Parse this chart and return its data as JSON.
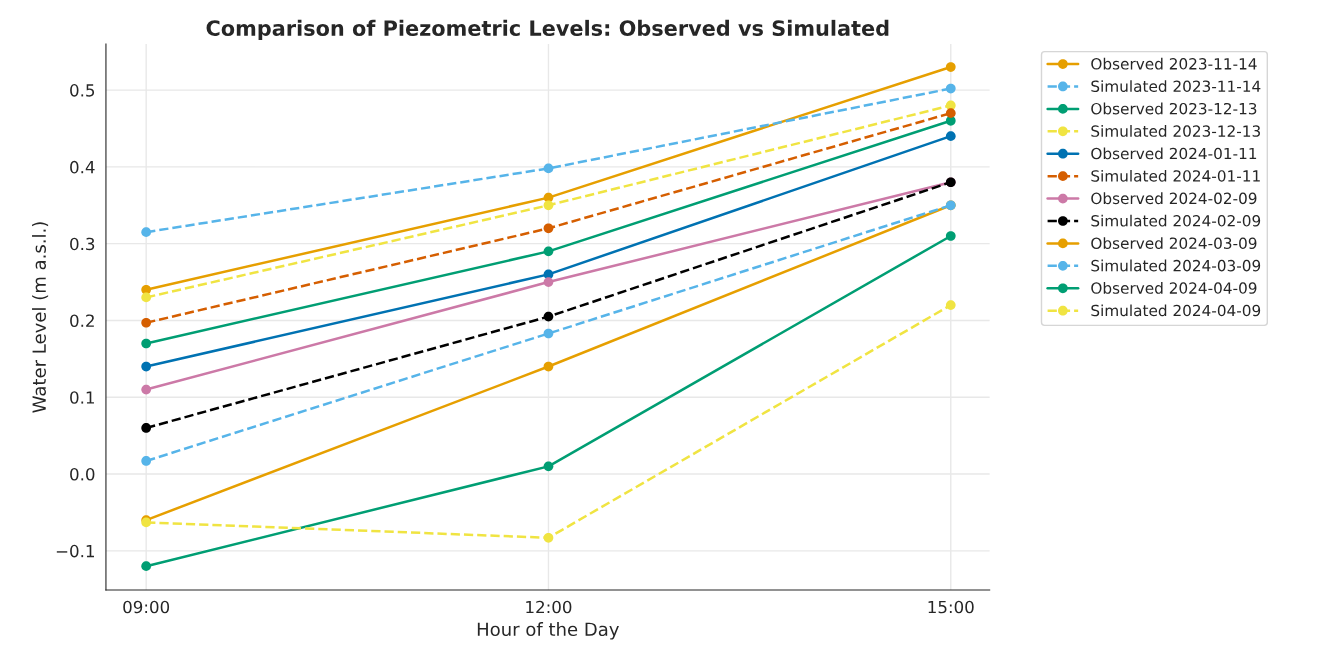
{
  "chart_data": {
    "type": "line",
    "title": "Comparison of Piezometric Levels: Observed vs Simulated",
    "xlabel": "Hour of the Day",
    "ylabel": "Water Level (m a.s.l.)",
    "x": [
      9,
      12,
      15
    ],
    "xlim": [
      8.7,
      15.29
    ],
    "xticks": [
      {
        "value": 9,
        "label": "09:00"
      },
      {
        "value": 12,
        "label": "12:00"
      },
      {
        "value": 15,
        "label": "15:00"
      }
    ],
    "ylim": [
      -0.151,
      0.56
    ],
    "yticks": [
      {
        "value": -0.1,
        "label": "−0.1"
      },
      {
        "value": 0,
        "label": "0.0"
      },
      0.1,
      0.2,
      0.3,
      0.4,
      0.5
    ],
    "grid": true,
    "legend": "top right",
    "marker": "circle",
    "series": [
      {
        "name": "Observed 2023-11-14",
        "color": "#e69f00",
        "line_style": "solid",
        "values": [
          0.24,
          0.36,
          0.53
        ]
      },
      {
        "name": "Simulated 2023-11-14",
        "color": "#56b4e9",
        "line_style": "dashed",
        "values": [
          0.315,
          0.398,
          0.502
        ]
      },
      {
        "name": "Observed 2023-12-13",
        "color": "#009e73",
        "line_style": "solid",
        "values": [
          0.17,
          0.29,
          0.46
        ]
      },
      {
        "name": "Simulated 2023-12-13",
        "color": "#f0e442",
        "line_style": "dashed",
        "values": [
          0.23,
          0.35,
          0.48
        ]
      },
      {
        "name": "Observed 2024-01-11",
        "color": "#0072b2",
        "line_style": "solid",
        "values": [
          0.14,
          0.26,
          0.44
        ]
      },
      {
        "name": "Simulated 2024-01-11",
        "color": "#d55e00",
        "line_style": "dashed",
        "values": [
          0.197,
          0.32,
          0.47
        ]
      },
      {
        "name": "Observed 2024-02-09",
        "color": "#cc79a7",
        "line_style": "solid",
        "values": [
          0.11,
          0.25,
          0.38
        ]
      },
      {
        "name": "Simulated 2024-02-09",
        "color": "#000000",
        "line_style": "dashed",
        "values": [
          0.06,
          0.205,
          0.38
        ]
      },
      {
        "name": "Observed 2024-03-09",
        "color": "#e69f00",
        "line_style": "solid",
        "values": [
          -0.06,
          0.14,
          0.35
        ]
      },
      {
        "name": "Simulated 2024-03-09",
        "color": "#56b4e9",
        "line_style": "dashed",
        "values": [
          0.017,
          0.183,
          0.35
        ]
      },
      {
        "name": "Observed 2024-04-09",
        "color": "#009e73",
        "line_style": "solid",
        "values": [
          -0.12,
          0.01,
          0.31
        ]
      },
      {
        "name": "Simulated 2024-04-09",
        "color": "#f0e442",
        "line_style": "dashed",
        "values": [
          -0.063,
          -0.083,
          0.22
        ]
      }
    ]
  }
}
